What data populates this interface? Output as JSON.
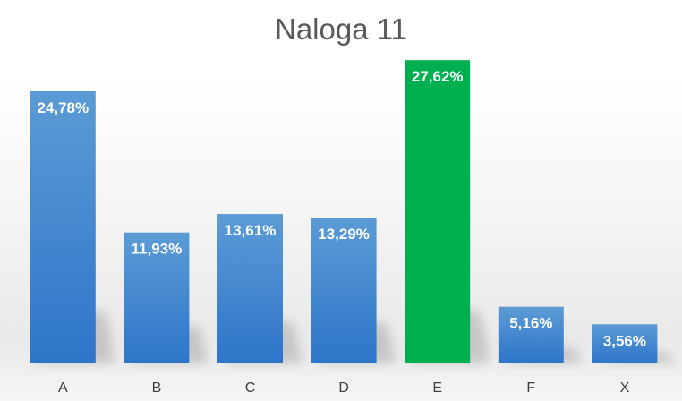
{
  "chart_data": {
    "type": "bar",
    "title": "Naloga 11",
    "xlabel": "",
    "ylabel": "",
    "categories": [
      "A",
      "B",
      "C",
      "D",
      "E",
      "F",
      "X"
    ],
    "values": [
      24.78,
      11.93,
      13.61,
      13.29,
      27.62,
      5.16,
      3.56
    ],
    "data_labels": [
      "24,78%",
      "11,93%",
      "13,61%",
      "13,29%",
      "27,62%",
      "5,16%",
      "3,56%"
    ],
    "value_unit": "%",
    "ylim": [
      0,
      30
    ],
    "grid": false,
    "legend": "none",
    "highlighted_category": "E",
    "colors": {
      "bar_top": "#5b9bd5",
      "bar_bottom": "#2e75c9",
      "highlight": "#00b050",
      "title": "#595959",
      "label": "#ffffff",
      "tick": "#404040"
    }
  }
}
